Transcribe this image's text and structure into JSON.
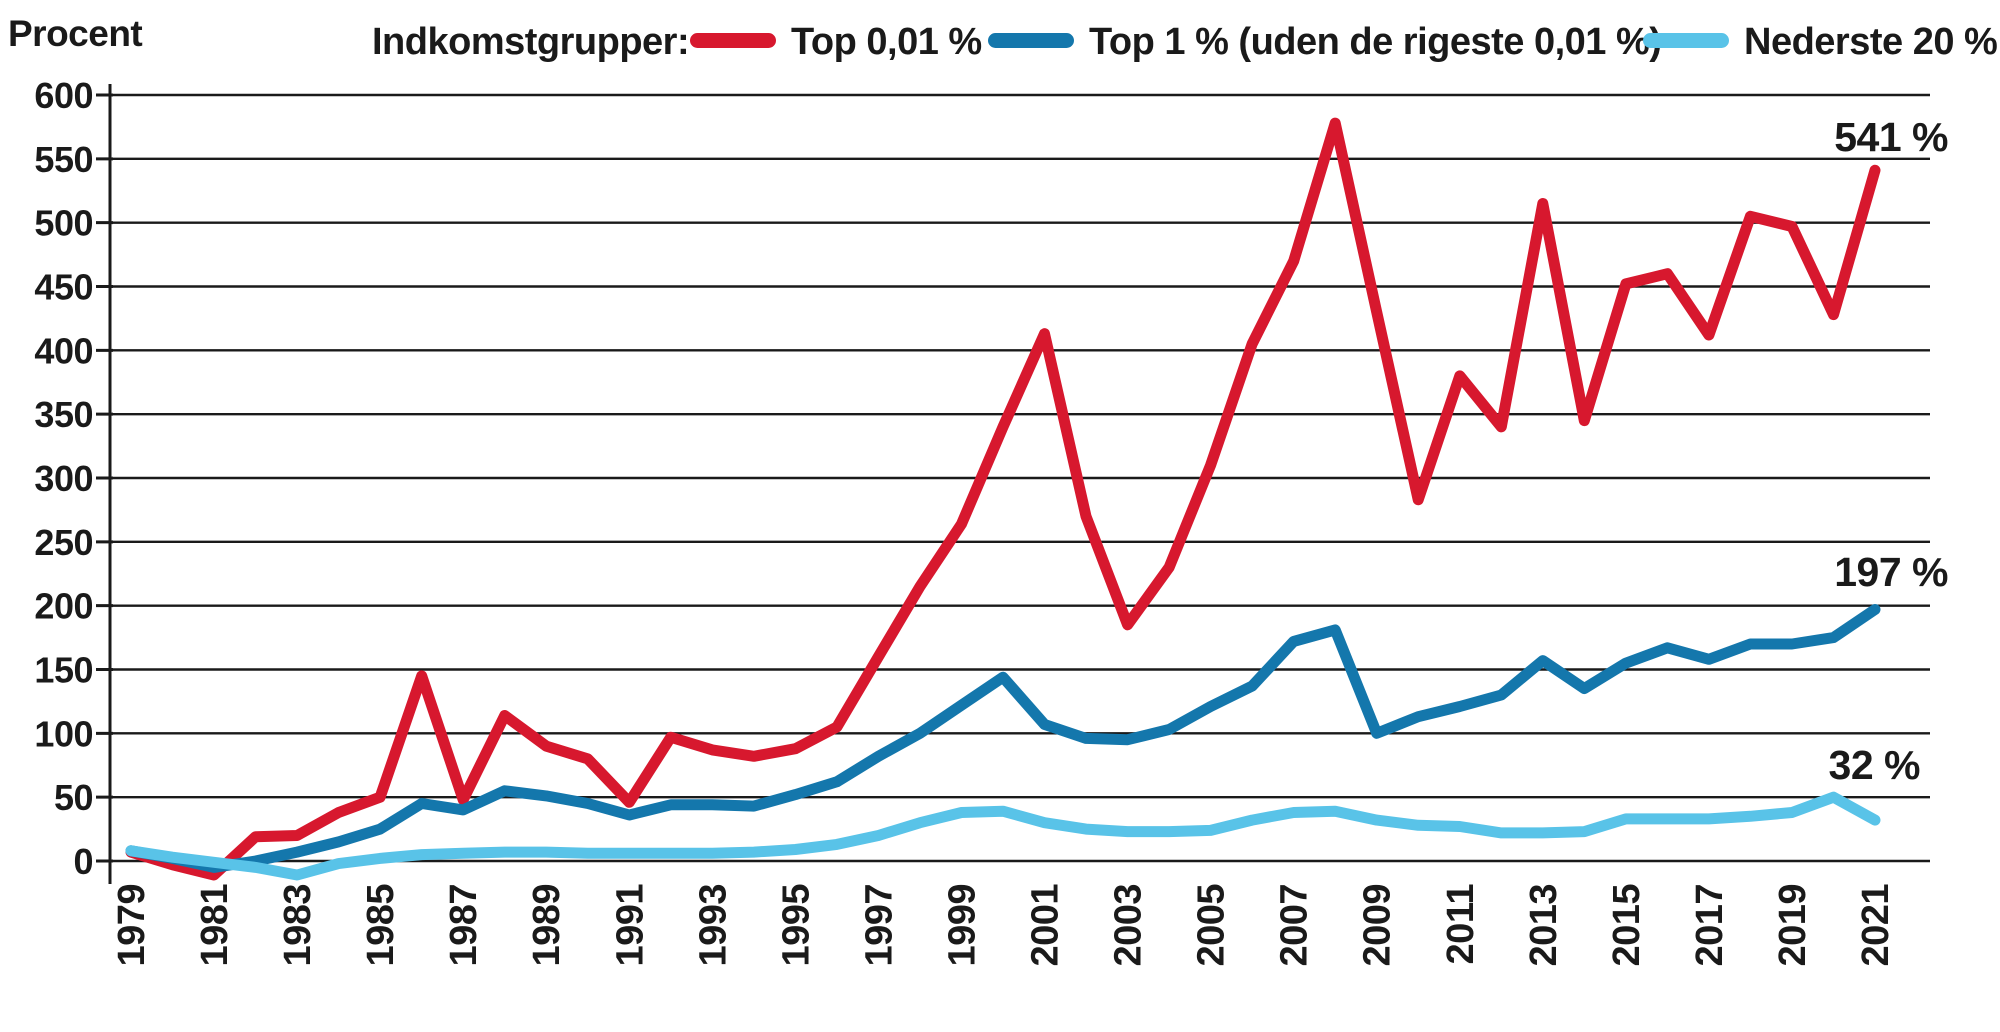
{
  "page": {
    "background": "#ffffff"
  },
  "legend": {
    "title": "Indkomstgrupper:"
  },
  "chart_data": {
    "type": "line",
    "title": "",
    "xlabel": "",
    "ylabel": "Procent",
    "ylim": [
      -15,
      600
    ],
    "yticks": [
      0,
      50,
      100,
      150,
      200,
      250,
      300,
      350,
      400,
      450,
      500,
      550,
      600
    ],
    "grid": "horizontal",
    "legend_position": "top",
    "x": [
      1979,
      1980,
      1981,
      1982,
      1983,
      1984,
      1985,
      1986,
      1987,
      1988,
      1989,
      1990,
      1991,
      1992,
      1993,
      1994,
      1995,
      1996,
      1997,
      1998,
      1999,
      2000,
      2001,
      2002,
      2003,
      2004,
      2005,
      2006,
      2007,
      2008,
      2009,
      2010,
      2011,
      2012,
      2013,
      2014,
      2015,
      2016,
      2017,
      2018,
      2019,
      2020,
      2021
    ],
    "x_tick_labels": [
      "1979",
      "1981",
      "1983",
      "1985",
      "1987",
      "1989",
      "1991",
      "1993",
      "1995",
      "1997",
      "1999",
      "2001",
      "2003",
      "2005",
      "2007",
      "2009",
      "2011",
      "2013",
      "2015",
      "2017",
      "2019",
      "2021"
    ],
    "series": [
      {
        "name": "Top 0,01 %",
        "color": "#d7182e",
        "end_label": "541 %",
        "values": [
          7,
          -3,
          -11,
          19,
          20,
          38,
          50,
          145,
          48,
          114,
          90,
          80,
          46,
          97,
          87,
          82,
          88,
          105,
          160,
          215,
          264,
          340,
          413,
          270,
          185,
          230,
          310,
          405,
          470,
          578,
          430,
          283,
          380,
          340,
          515,
          345,
          452,
          460,
          412,
          505,
          497,
          428,
          541
        ]
      },
      {
        "name": "Top 1 % (uden de rigeste 0,01 %)",
        "color": "#1477ac",
        "end_label": "197 %",
        "values": [
          8,
          2,
          -5,
          0,
          7,
          15,
          25,
          45,
          40,
          55,
          51,
          45,
          36,
          44,
          44,
          43,
          52,
          62,
          82,
          100,
          122,
          144,
          107,
          96,
          95,
          103,
          121,
          137,
          172,
          181,
          100,
          113,
          121,
          130,
          157,
          135,
          155,
          167,
          158,
          170,
          170,
          175,
          197
        ]
      },
      {
        "name": "Nederste 20 %",
        "color": "#59c3e8",
        "end_label": "32 %",
        "values": [
          8,
          3,
          -1,
          -5,
          -11,
          -2,
          2,
          5,
          6,
          7,
          7,
          6,
          6,
          6,
          6,
          7,
          9,
          13,
          20,
          30,
          38,
          39,
          30,
          25,
          23,
          23,
          24,
          32,
          38,
          39,
          32,
          28,
          27,
          22,
          22,
          23,
          33,
          33,
          33,
          35,
          38,
          50,
          32
        ]
      }
    ]
  }
}
